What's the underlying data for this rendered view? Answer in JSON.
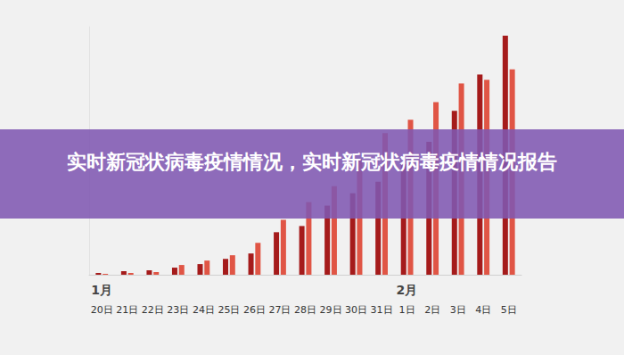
{
  "chart_data": {
    "type": "bar",
    "title": "实时新冠状病毒疫情情况，实时新冠状病毒疫情情况报告",
    "categories": [
      "20日",
      "21日",
      "22日",
      "23日",
      "24日",
      "25日",
      "26日",
      "27日",
      "28日",
      "29日",
      "30日",
      "31日",
      "1日",
      "2日",
      "3日",
      "4日",
      "5日"
    ],
    "series": [
      {
        "color": "#a51b1b",
        "values": [
          2,
          4,
          5,
          8,
          12,
          18,
          24,
          48,
          55,
          78,
          92,
          105,
          125,
          150,
          185,
          226,
          270
        ]
      },
      {
        "color": "#e05545",
        "values": [
          1,
          2,
          3,
          11,
          16,
          22,
          36,
          62,
          82,
          100,
          130,
          160,
          175,
          195,
          216,
          220,
          232
        ]
      }
    ],
    "annotations": [
      {
        "text": "1月",
        "category": "20日"
      },
      {
        "text": "2月",
        "category": "1日"
      }
    ],
    "ylim": [
      0,
      280
    ],
    "grid": false,
    "tick_labels": "x"
  }
}
